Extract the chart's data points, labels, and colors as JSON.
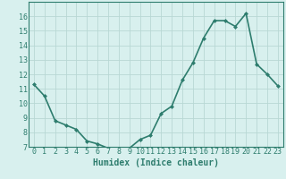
{
  "title": "",
  "xlabel": "Humidex (Indice chaleur)",
  "ylabel": "",
  "x": [
    0,
    1,
    2,
    3,
    4,
    5,
    6,
    7,
    8,
    9,
    10,
    11,
    12,
    13,
    14,
    15,
    16,
    17,
    18,
    19,
    20,
    21,
    22,
    23
  ],
  "y": [
    11.3,
    10.5,
    8.8,
    8.5,
    8.2,
    7.4,
    7.2,
    6.9,
    6.8,
    6.9,
    7.5,
    7.8,
    9.3,
    9.8,
    11.6,
    12.8,
    14.5,
    15.7,
    15.7,
    15.3,
    16.2,
    12.7,
    12.0,
    11.2
  ],
  "line_color": "#2e7d6e",
  "marker": "D",
  "marker_size": 2,
  "bg_color": "#d8f0ee",
  "grid_color": "#b8d8d4",
  "tick_color": "#2e7d6e",
  "axis_color": "#2e7d6e",
  "xlabel_color": "#2e7d6e",
  "ylim": [
    7,
    17
  ],
  "xlim": [
    -0.5,
    23.5
  ],
  "yticks": [
    7,
    8,
    9,
    10,
    11,
    12,
    13,
    14,
    15,
    16
  ],
  "xtick_labels": [
    "0",
    "1",
    "2",
    "3",
    "4",
    "5",
    "6",
    "7",
    "8",
    "9",
    "10",
    "11",
    "12",
    "13",
    "14",
    "15",
    "16",
    "17",
    "18",
    "19",
    "20",
    "21",
    "22",
    "23"
  ],
  "linewidth": 1.2,
  "marker_facecolor": "#2e7d6e",
  "marker_edgecolor": "#2e7d6e",
  "tick_fontsize": 6,
  "xlabel_fontsize": 7
}
